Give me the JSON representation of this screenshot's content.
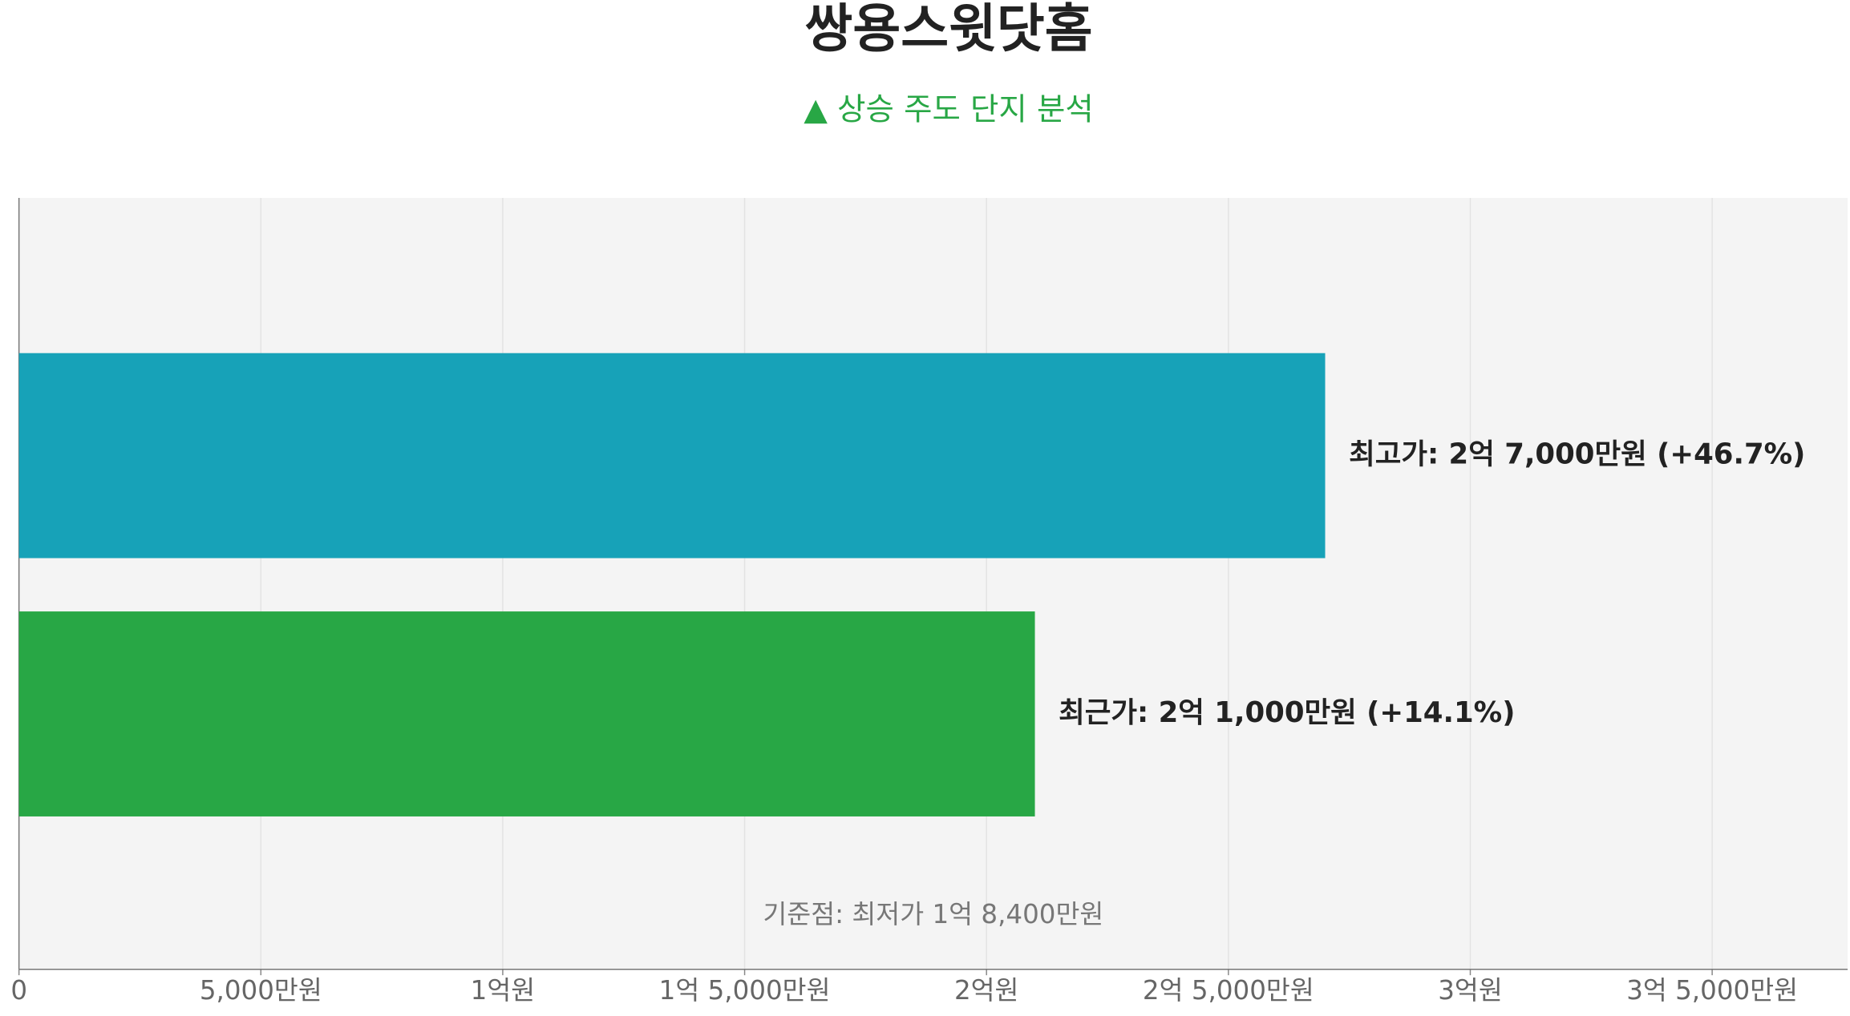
{
  "chart_data": {
    "type": "bar",
    "orientation": "horizontal",
    "title": "쌍용스윗닷홈",
    "subtitle": "▲ 상승 주도 단지 분석",
    "annotation": "기준점: 최저가 1억 8,400만원",
    "values": [
      270000000,
      210000000
    ],
    "value_labels": [
      "최고가: 2억 7,000만원 (+46.7%)",
      "최근가: 2억 1,000만원 (+14.1%)"
    ],
    "colors": [
      "#17a2b8",
      "#28a745"
    ],
    "xlim": [
      0,
      378000000
    ],
    "xticks": [
      0,
      {
        "value": 50000000,
        "label": "5,000만원"
      },
      {
        "value": 100000000,
        "label": "1억원"
      },
      {
        "value": 150000000,
        "label": "1억 5,000만원"
      },
      {
        "value": 200000000,
        "label": "2억원"
      },
      {
        "value": 250000000,
        "label": "2억 5,000만원"
      },
      {
        "value": 300000000,
        "label": "3억원"
      },
      {
        "value": 350000000,
        "label": "3억 5,000만원"
      }
    ],
    "grid": true
  }
}
